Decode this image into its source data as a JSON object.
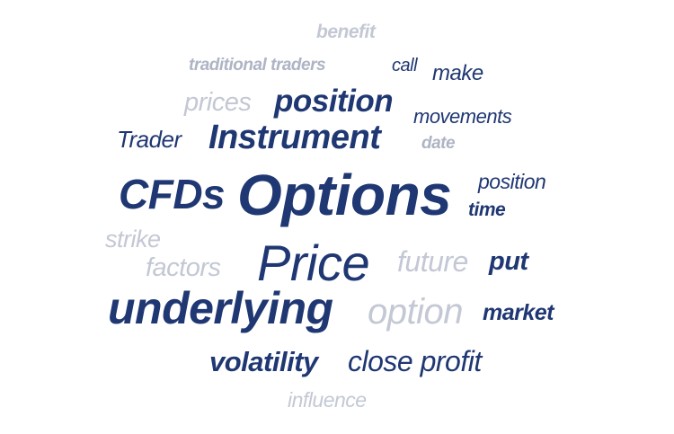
{
  "word_cloud": {
    "words": [
      {
        "text": "benefit"
      },
      {
        "text": "traditional traders"
      },
      {
        "text": "call"
      },
      {
        "text": "make"
      },
      {
        "text": "prices"
      },
      {
        "text": "position"
      },
      {
        "text": "movements"
      },
      {
        "text": "Trader"
      },
      {
        "text": "Instrument"
      },
      {
        "text": "date"
      },
      {
        "text": "CFDs"
      },
      {
        "text": "Options"
      },
      {
        "text": "position"
      },
      {
        "text": "time"
      },
      {
        "text": "strike"
      },
      {
        "text": "factors"
      },
      {
        "text": "Price"
      },
      {
        "text": "future"
      },
      {
        "text": "put"
      },
      {
        "text": "underlying"
      },
      {
        "text": "option"
      },
      {
        "text": "market"
      },
      {
        "text": "volatility"
      },
      {
        "text": "close profit"
      },
      {
        "text": "influence"
      }
    ],
    "colors": {
      "primary": "#1f3772",
      "secondary": "#c3c8d4",
      "muted": "#aeb4c4",
      "background": "#ffffff"
    }
  }
}
